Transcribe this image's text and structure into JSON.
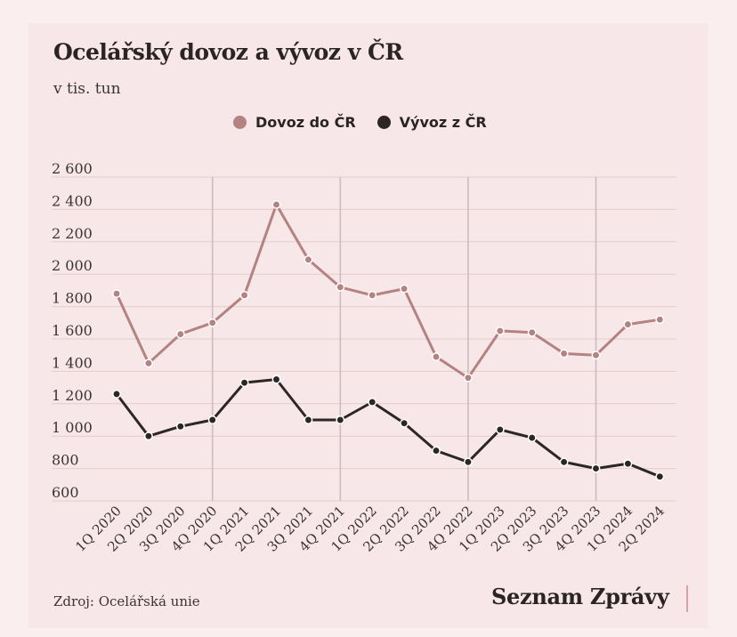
{
  "title": "Ocelářský dovoz a vývoz v ČR",
  "subtitle": "v tis. tun",
  "source": "Zdroj: Ocelářská unie",
  "brand": "Seznam Zprávy",
  "colors": {
    "import": "#b58282",
    "export": "#2d2626",
    "grid": "#e2cccd",
    "vline": "#cdbcbd",
    "background": "#f8e7e8"
  },
  "chart_data": {
    "type": "line",
    "categories": [
      "1Q 2020",
      "2Q 2020",
      "3Q 2020",
      "4Q 2020",
      "1Q 2021",
      "2Q 2021",
      "3Q 2021",
      "4Q 2021",
      "1Q 2022",
      "2Q 2022",
      "3Q 2022",
      "4Q 2022",
      "1Q 2023",
      "2Q 2023",
      "3Q 2023",
      "4Q 2023",
      "1Q 2024",
      "2Q 2024"
    ],
    "yticks": [
      "2 600",
      "2 400",
      "2 200",
      "2 000",
      "1 800",
      "1 600",
      "1 400",
      "1 200",
      "1 000",
      "800",
      "600"
    ],
    "ylim": [
      600,
      2600
    ],
    "legend_position": "top-center",
    "series": [
      {
        "name": "Dovoz do ČR",
        "color": "#b58282",
        "values": [
          1880,
          1450,
          1630,
          1700,
          1870,
          2430,
          2090,
          1920,
          1870,
          1910,
          1490,
          1360,
          1650,
          1640,
          1510,
          1500,
          1690,
          1720
        ]
      },
      {
        "name": "Vývoz z ČR",
        "color": "#2d2626",
        "values": [
          1260,
          1000,
          1060,
          1100,
          1330,
          1350,
          1100,
          1100,
          1210,
          1080,
          910,
          840,
          1040,
          990,
          840,
          800,
          830,
          750
        ]
      }
    ],
    "year_markers": [
      "4Q 2020",
      "4Q 2021",
      "4Q 2022",
      "4Q 2023"
    ]
  }
}
